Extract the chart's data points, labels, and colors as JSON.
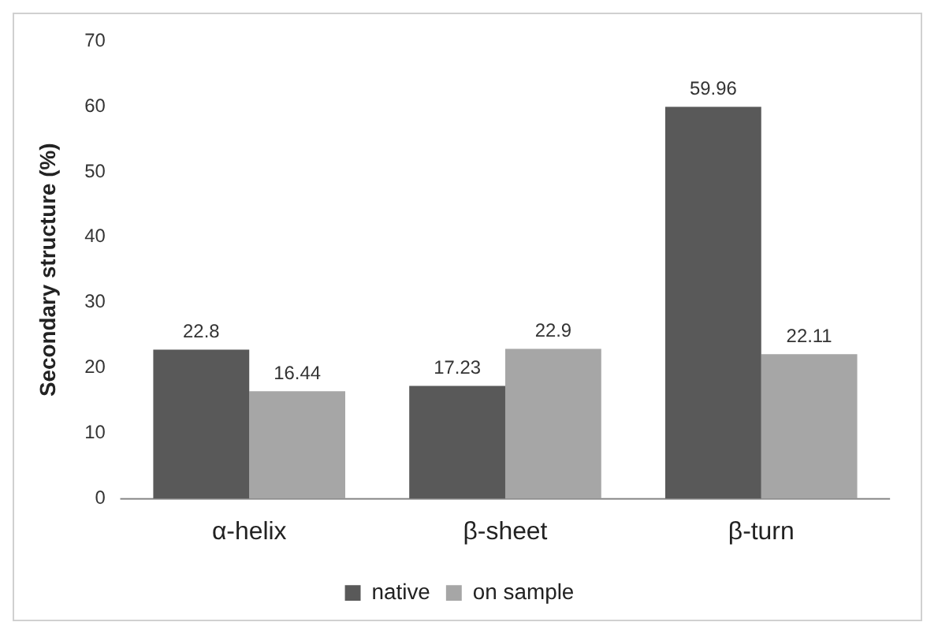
{
  "chart_data": {
    "type": "bar",
    "ylabel": "Secondary structure (%)",
    "categories": [
      "α-helix",
      "β-sheet",
      "β-turn"
    ],
    "series": [
      {
        "name": "native",
        "color": "#595959",
        "values": [
          22.8,
          17.23,
          59.96
        ]
      },
      {
        "name": "on sample",
        "color": "#a6a6a6",
        "values": [
          16.44,
          22.9,
          22.11
        ]
      }
    ],
    "ylim": [
      0,
      70
    ],
    "yticks": [
      0,
      10,
      20,
      30,
      40,
      50,
      60,
      70
    ],
    "grid": false,
    "legend": "bottom",
    "data_labels": true
  }
}
